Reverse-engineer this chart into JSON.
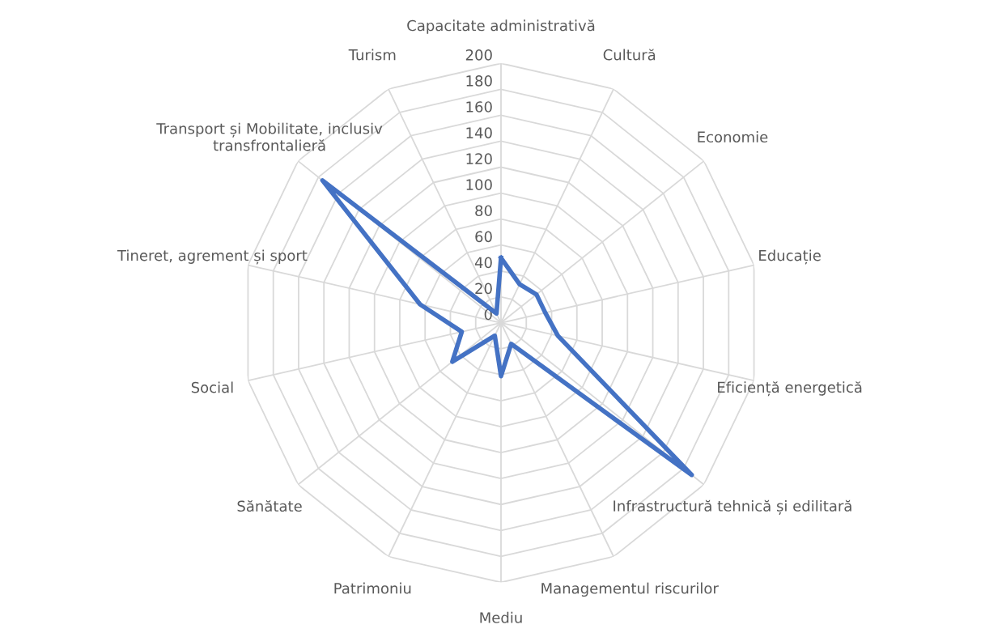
{
  "chart_data": {
    "type": "radar",
    "categories": [
      "Capacitate administrativă",
      "Cultură",
      "Economie",
      "Educație",
      "Eficiență energetică",
      "Infrastructură tehnică și edilitară",
      "Managementul riscurilor",
      "Mediu",
      "Patrimoniu",
      "Sănătate",
      "Social",
      "Tineret, agrement și sport",
      "Transport și Mobilitate, inclusiv\ntransfrontalieră",
      "Turism"
    ],
    "series": [
      {
        "color": "#4472c4",
        "values": [
          50,
          33,
          35,
          35,
          45,
          188,
          18,
          41,
          11,
          48,
          31,
          64,
          176,
          8
        ]
      }
    ],
    "ylim": [
      0,
      200
    ],
    "yticks": [
      0,
      20,
      40,
      60,
      80,
      100,
      120,
      140,
      160,
      180,
      200
    ],
    "grid": true,
    "marker": "none",
    "line_style": "solid"
  }
}
